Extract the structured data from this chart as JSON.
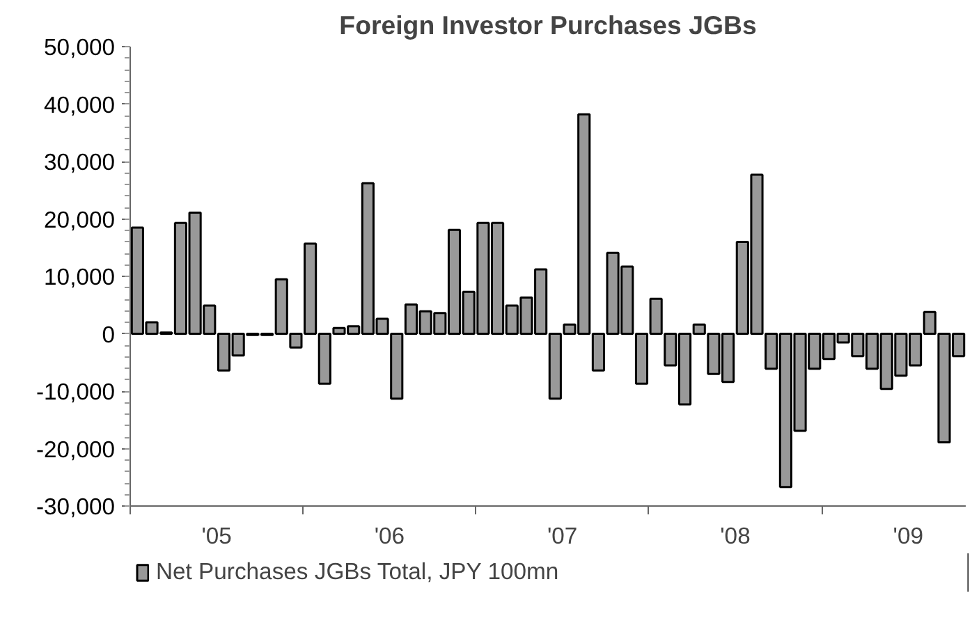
{
  "chart_data": {
    "type": "bar",
    "title": "Foreign Investor Purchases JGBs",
    "x": [
      "2005-01",
      "2005-02",
      "2005-03",
      "2005-04",
      "2005-05",
      "2005-06",
      "2005-07",
      "2005-08",
      "2005-09",
      "2005-10",
      "2005-11",
      "2005-12",
      "2006-01",
      "2006-02",
      "2006-03",
      "2006-04",
      "2006-05",
      "2006-06",
      "2006-07",
      "2006-08",
      "2006-09",
      "2006-10",
      "2006-11",
      "2006-12",
      "2007-01",
      "2007-02",
      "2007-03",
      "2007-04",
      "2007-05",
      "2007-06",
      "2007-07",
      "2007-08",
      "2007-09",
      "2007-10",
      "2007-11",
      "2007-12",
      "2008-01",
      "2008-02",
      "2008-03",
      "2008-04",
      "2008-05",
      "2008-06",
      "2008-07",
      "2008-08",
      "2008-09",
      "2008-10",
      "2008-11",
      "2008-12",
      "2009-01",
      "2009-02",
      "2009-03",
      "2009-04",
      "2009-05",
      "2009-06",
      "2009-07",
      "2009-08",
      "2009-09",
      "2009-10"
    ],
    "series": [
      {
        "name": "Net Purchases JGBs Total, JPY 100mn",
        "color": "#999999",
        "values": [
          18500,
          2000,
          200,
          19300,
          21100,
          4900,
          -6400,
          -3800,
          -200,
          -200,
          9500,
          -2400,
          15700,
          -8700,
          1000,
          1300,
          26200,
          2600,
          -11300,
          5100,
          3900,
          3600,
          18100,
          7300,
          19300,
          19300,
          4900,
          6300,
          11200,
          -11300,
          1600,
          38200,
          -6400,
          14100,
          11700,
          -8700,
          6100,
          -5500,
          -12300,
          1600,
          -7000,
          -8400,
          16000,
          27700,
          -6100,
          -26700,
          -16900,
          -6100,
          -4400,
          -1500,
          -3900,
          -6100,
          -9600,
          -7300,
          -5500,
          3800,
          -18900,
          -3900
        ]
      }
    ],
    "xlim": [
      "2005-01",
      "2009-11"
    ],
    "xticks": [
      {
        "value": "2005-01",
        "label": null
      },
      {
        "value": "2005-07",
        "label": "'05"
      },
      {
        "value": "2006-01",
        "label": null
      },
      {
        "value": "2006-07",
        "label": "'06"
      },
      {
        "value": "2007-01",
        "label": null
      },
      {
        "value": "2007-07",
        "label": "'07"
      },
      {
        "value": "2008-01",
        "label": null
      },
      {
        "value": "2008-07",
        "label": "'08"
      },
      {
        "value": "2009-01",
        "label": null
      },
      {
        "value": "2009-07",
        "label": "'09"
      }
    ],
    "ylim": [
      -30000,
      50000
    ],
    "yticks": [
      {
        "value": -30000,
        "label": "-30,000"
      },
      {
        "value": -20000,
        "label": "-20,000"
      },
      {
        "value": -10000,
        "label": "-10,000"
      },
      {
        "value": 0,
        "label": "0"
      },
      {
        "value": 10000,
        "label": "10,000"
      },
      {
        "value": 20000,
        "label": "20,000"
      },
      {
        "value": 30000,
        "label": "30,000"
      },
      {
        "value": 40000,
        "label": "40,000"
      },
      {
        "value": 50000,
        "label": "50,000"
      }
    ],
    "grid": false,
    "legend": "bottom"
  }
}
